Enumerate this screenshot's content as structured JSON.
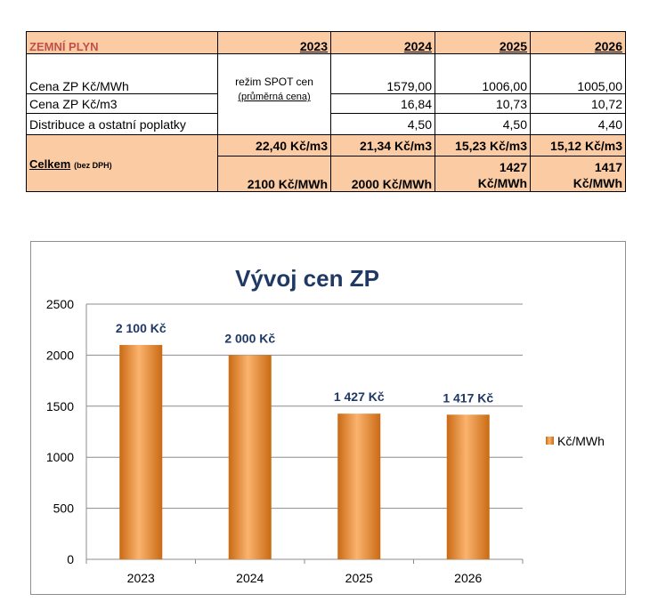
{
  "table": {
    "header": {
      "title": "ZEMNÍ PLYN",
      "years": [
        "2023",
        "2024",
        "2025",
        "2026"
      ]
    },
    "note": {
      "line1": "režim SPOT cen",
      "line2": "(průměrná cena)"
    },
    "rows": [
      {
        "label": "Cena ZP Kč/MWh",
        "values": [
          "1579,00",
          "1006,00",
          "1005,00"
        ]
      },
      {
        "label": "Cena ZP Kč/m3",
        "values": [
          "16,84",
          "10,73",
          "10,72"
        ]
      },
      {
        "label": "Distribuce a ostatní poplatky",
        "values": [
          "4,50",
          "4,50",
          "4,40"
        ]
      }
    ],
    "total": {
      "label": "Celkem",
      "sublabel": "(bez DPH)",
      "per_m3": [
        "22,40 Kč/m3",
        "21,34 Kč/m3",
        "15,23 Kč/m3",
        "15,12 Kč/m3"
      ],
      "per_mwh": [
        "2100 Kč/MWh",
        "2000 Kč/MWh",
        "1427",
        "1417"
      ],
      "per_mwh_unit": [
        "",
        "",
        "Kč/MWh",
        "Kč/MWh"
      ]
    }
  },
  "chart_data": {
    "type": "bar",
    "title": "Vývoj cen ZP",
    "categories": [
      "2023",
      "2024",
      "2025",
      "2026"
    ],
    "series": [
      {
        "name": "Kč/MWh",
        "values": [
          2100,
          2000,
          1427,
          1417
        ]
      }
    ],
    "data_labels": [
      "2 100 Kč",
      "2 000 Kč",
      "1 427 Kč",
      "1 417 Kč"
    ],
    "ylim": [
      0,
      2500
    ],
    "yticks": [
      0,
      500,
      1000,
      1500,
      2000,
      2500
    ],
    "grid": true,
    "legend": "right",
    "colors": {
      "bar": "#F79646",
      "bar_light": "#FBB36E",
      "bar_dark": "#C96A14",
      "title": "#1F3864",
      "label": "#1F3864",
      "grid": "#8C8C8C"
    }
  }
}
